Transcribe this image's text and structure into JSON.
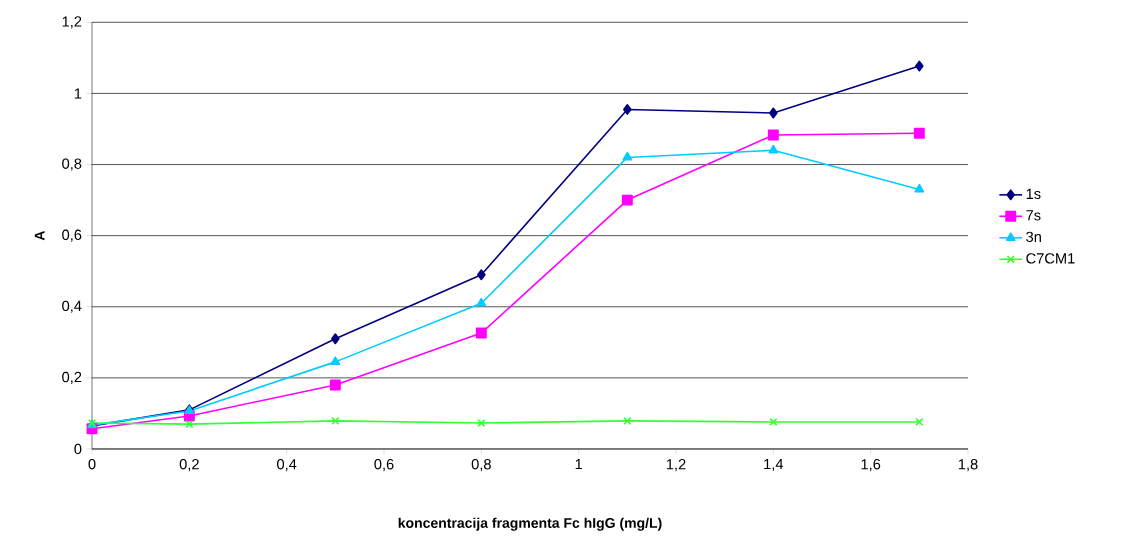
{
  "chart_data": {
    "type": "line",
    "xlabel": "koncentracija fragmenta Fc hIgG (mg/L)",
    "ylabel": "A",
    "x": [
      0,
      0.2,
      0.5,
      0.8,
      1.1,
      1.4,
      1.7
    ],
    "series": [
      {
        "name": "1s",
        "color": "#000080",
        "marker": "diamond",
        "values": [
          0.065,
          0.11,
          0.31,
          0.49,
          0.955,
          0.945,
          1.077
        ]
      },
      {
        "name": "7s",
        "color": "#ff00ff",
        "marker": "square",
        "values": [
          0.057,
          0.093,
          0.18,
          0.326,
          0.7,
          0.883,
          0.888
        ]
      },
      {
        "name": "3n",
        "color": "#00ccff",
        "marker": "triangle",
        "values": [
          0.067,
          0.107,
          0.245,
          0.41,
          0.82,
          0.84,
          0.73
        ]
      },
      {
        "name": "C7CM1",
        "color": "#33ff33",
        "marker": "cross",
        "values": [
          0.073,
          0.07,
          0.079,
          0.073,
          0.079,
          0.076,
          0.076
        ]
      }
    ],
    "xlim": [
      0,
      1.8
    ],
    "ylim": [
      0,
      1.2
    ],
    "xticks": [
      0,
      {
        "value": 0.2,
        "label": "0,2"
      },
      {
        "value": 0.4,
        "label": "0,4"
      },
      {
        "value": 0.6,
        "label": "0,6"
      },
      {
        "value": 0.8,
        "label": "0,8"
      },
      1,
      {
        "value": 1.2,
        "label": "1,2"
      },
      {
        "value": 1.4,
        "label": "1,4"
      },
      {
        "value": 1.6,
        "label": "1,6"
      },
      {
        "value": 1.8,
        "label": "1,8"
      }
    ],
    "yticks": [
      0,
      {
        "value": 0.2,
        "label": "0,2"
      },
      {
        "value": 0.4,
        "label": "0,4"
      },
      {
        "value": 0.6,
        "label": "0,6"
      },
      {
        "value": 0.8,
        "label": "0,8"
      },
      1,
      {
        "value": 1.2,
        "label": "1,2"
      }
    ],
    "grid": "y",
    "legend": "right",
    "line_style": "solid"
  }
}
